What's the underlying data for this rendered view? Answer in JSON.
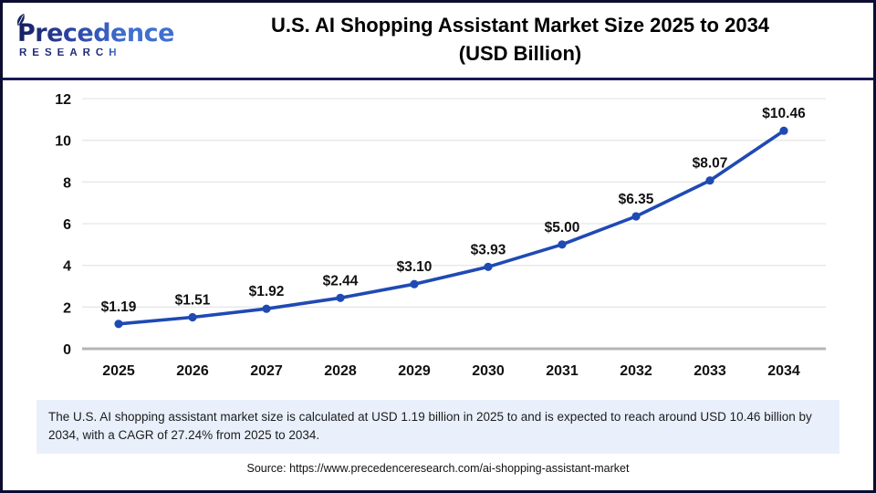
{
  "brand": {
    "logo_text": "Precedence",
    "logo_subtitle": "RESEARCH",
    "navy": "#1e2a78",
    "blue": "#3f6fd1"
  },
  "header": {
    "title_line1": "U.S. AI Shopping Assistant Market Size 2025 to 2034",
    "title_line2": "(USD Billion)"
  },
  "chart_data": {
    "type": "line",
    "title": "U.S. AI Shopping Assistant Market Size 2025 to 2034 (USD Billion)",
    "categories": [
      "2025",
      "2026",
      "2027",
      "2028",
      "2029",
      "2030",
      "2031",
      "2032",
      "2033",
      "2034"
    ],
    "series": [
      {
        "name": "U.S. AI Shopping Assistant Market Size (USD Billion)",
        "values": [
          1.19,
          1.51,
          1.92,
          2.44,
          3.1,
          3.93,
          5.0,
          6.35,
          8.07,
          10.46
        ]
      }
    ],
    "point_labels": [
      "$1.19",
      "$1.51",
      "$1.92",
      "$2.44",
      "$3.10",
      "$3.93",
      "$5.00",
      "$6.35",
      "$8.07",
      "$10.46"
    ],
    "xlabel": "",
    "ylabel": "",
    "ylim": [
      0,
      12
    ],
    "yticks": [
      0,
      2,
      4,
      6,
      8,
      10,
      12
    ],
    "grid": true,
    "legend": "none",
    "line_color": "#1f4ab4",
    "marker_color": "#1f4ab4",
    "gridline_color": "#e7e7e7",
    "axis_line_color": "#b5b5b5",
    "label_color": "#111111"
  },
  "summary": {
    "text": "The U.S. AI shopping assistant market size is calculated at USD 1.19 billion in 2025 to and is expected to reach around USD 10.46 billion by 2034, with a CAGR of 27.24% from 2025 to 2034.",
    "background": "#e9f0fb"
  },
  "footer": {
    "source_text": "Source: https://www.precedenceresearch.com/ai-shopping-assistant-market"
  }
}
